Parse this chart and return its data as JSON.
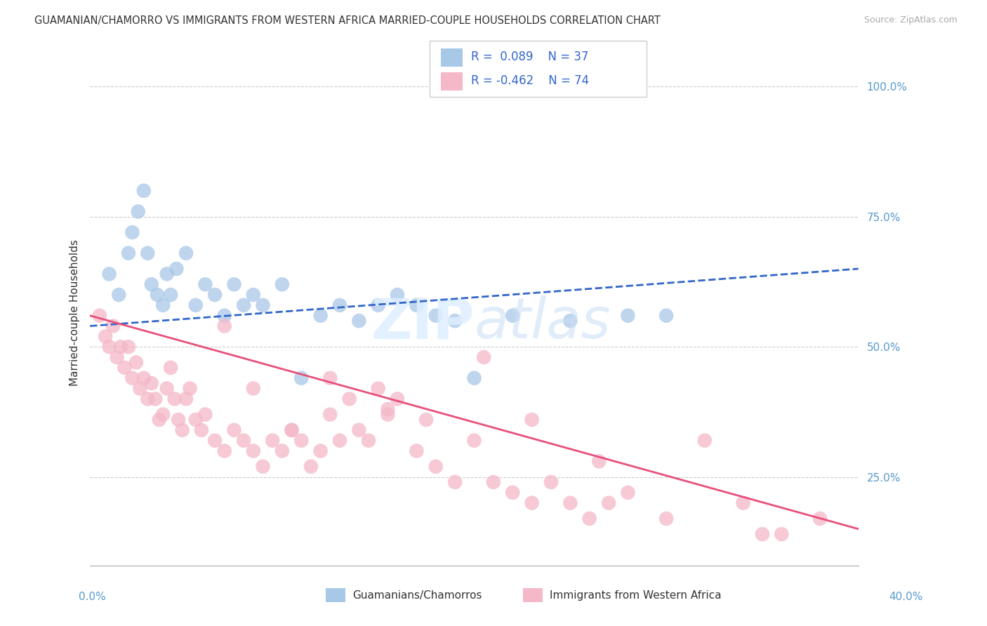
{
  "title": "GUAMANIAN/CHAMORRO VS IMMIGRANTS FROM WESTERN AFRICA MARRIED-COUPLE HOUSEHOLDS CORRELATION CHART",
  "source": "Source: ZipAtlas.com",
  "ylabel": "Married-couple Households",
  "xmin": 0.0,
  "xmax": 40.0,
  "ymin": 8.0,
  "ymax": 105.0,
  "yticks": [
    25.0,
    50.0,
    75.0,
    100.0
  ],
  "ytick_labels": [
    "25.0%",
    "50.0%",
    "75.0%",
    "100.0%"
  ],
  "blue_R": 0.089,
  "blue_N": 37,
  "pink_R": -0.462,
  "pink_N": 74,
  "blue_color": "#a8c8e8",
  "pink_color": "#f4b8c8",
  "blue_line_color": "#3366cc",
  "pink_line_color": "#e8507a",
  "legend_label_blue": "Guamanians/Chamorros",
  "legend_label_pink": "Immigrants from Western Africa",
  "background_color": "#ffffff",
  "grid_color": "#cccccc",
  "blue_dots_x": [
    1.0,
    1.5,
    2.0,
    2.2,
    2.5,
    2.8,
    3.0,
    3.2,
    3.5,
    3.8,
    4.0,
    4.2,
    4.5,
    5.0,
    5.5,
    6.0,
    6.5,
    7.0,
    7.5,
    8.0,
    8.5,
    9.0,
    10.0,
    11.0,
    12.0,
    13.0,
    14.0,
    15.0,
    16.0,
    17.0,
    18.0,
    19.0,
    20.0,
    22.0,
    25.0,
    28.0,
    30.0
  ],
  "blue_dots_y": [
    64,
    60,
    68,
    72,
    76,
    80,
    68,
    62,
    60,
    58,
    64,
    60,
    65,
    68,
    58,
    62,
    60,
    56,
    62,
    58,
    60,
    58,
    62,
    44,
    56,
    58,
    55,
    58,
    60,
    58,
    56,
    55,
    44,
    56,
    55,
    56,
    56
  ],
  "pink_dots_x": [
    0.5,
    0.8,
    1.0,
    1.2,
    1.4,
    1.6,
    1.8,
    2.0,
    2.2,
    2.4,
    2.6,
    2.8,
    3.0,
    3.2,
    3.4,
    3.6,
    3.8,
    4.0,
    4.2,
    4.4,
    4.6,
    4.8,
    5.0,
    5.2,
    5.5,
    5.8,
    6.0,
    6.5,
    7.0,
    7.5,
    8.0,
    8.5,
    9.0,
    9.5,
    10.0,
    10.5,
    11.0,
    11.5,
    12.0,
    12.5,
    13.0,
    13.5,
    14.0,
    14.5,
    15.0,
    15.5,
    16.0,
    17.0,
    18.0,
    19.0,
    20.0,
    21.0,
    22.0,
    23.0,
    24.0,
    25.0,
    26.0,
    27.0,
    28.0,
    30.0,
    32.0,
    34.0,
    36.0,
    38.0,
    7.0,
    8.5,
    10.5,
    12.5,
    15.5,
    17.5,
    20.5,
    23.0,
    26.5,
    35.0
  ],
  "pink_dots_y": [
    56,
    52,
    50,
    54,
    48,
    50,
    46,
    50,
    44,
    47,
    42,
    44,
    40,
    43,
    40,
    36,
    37,
    42,
    46,
    40,
    36,
    34,
    40,
    42,
    36,
    34,
    37,
    32,
    30,
    34,
    32,
    30,
    27,
    32,
    30,
    34,
    32,
    27,
    30,
    37,
    32,
    40,
    34,
    32,
    42,
    37,
    40,
    30,
    27,
    24,
    32,
    24,
    22,
    20,
    24,
    20,
    17,
    20,
    22,
    17,
    32,
    20,
    14,
    17,
    54,
    42,
    34,
    44,
    38,
    36,
    48,
    36,
    28,
    14
  ]
}
